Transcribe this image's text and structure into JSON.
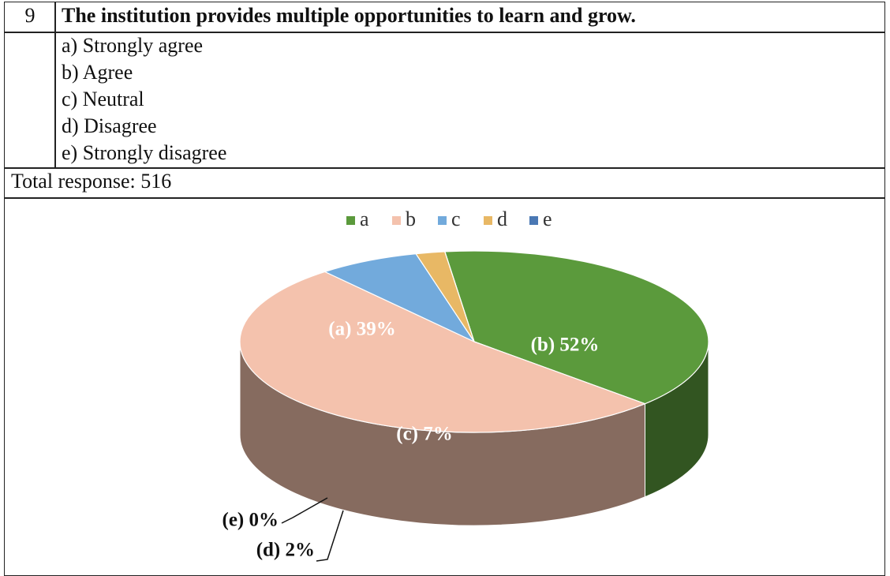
{
  "question": {
    "number": 9,
    "text": "The institution provides multiple opportunities to learn and grow."
  },
  "options": [
    "a) Strongly agree",
    "b) Agree",
    "c) Neutral",
    "d) Disagree",
    "e) Strongly disagree"
  ],
  "total_response": "Total response: 516",
  "chart_data": {
    "type": "pie",
    "categories": [
      "a",
      "b",
      "c",
      "d",
      "e"
    ],
    "values": [
      39,
      52,
      7,
      2,
      0
    ],
    "value_labels": [
      "(a) 39%",
      "(b) 52%",
      "(c) 7%",
      "(d) 2%",
      "(e) 0%"
    ],
    "colors": [
      "#5b9a3c",
      "#f4c2ad",
      "#72aadc",
      "#e8b865",
      "#4a78b4"
    ],
    "legend": "top"
  }
}
